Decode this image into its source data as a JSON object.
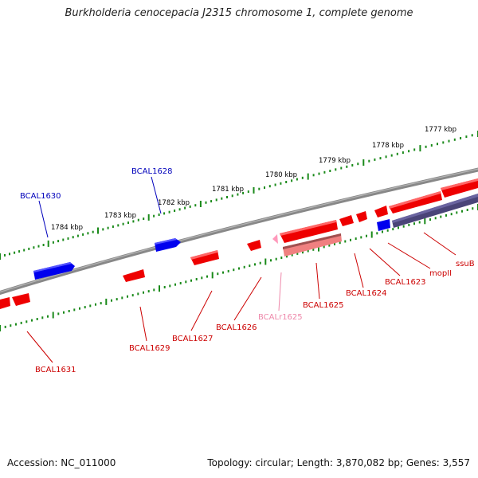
{
  "title": "Burkholderia cenocepacia J2315 chromosome 1, complete genome",
  "accession": "Accession: NC_011000",
  "topology": "Topology: circular; Length: 3,870,082 bp; Genes: 3,557",
  "colors": {
    "forward_gene": "#0000ee",
    "forward_gene_label": "#0000bb",
    "reverse_gene": "#ee0000",
    "reverse_gene_label": "#cc0000",
    "rna_gene": "#ff99bb",
    "rna_gene_label": "#ee88aa",
    "reverse_feature": "#4a4478",
    "tick": "#1a8a1a",
    "backbone": "#777777"
  },
  "scale_labels": [
    "1777 kbp",
    "1778 kbp",
    "1779 kbp",
    "1780 kbp",
    "1781 kbp",
    "1782 kbp",
    "1783 kbp",
    "1784 kbp"
  ],
  "forward_gene_labels": [
    "BCAL1628",
    "BCAL1630"
  ],
  "reverse_gene_labels": [
    "ssuB",
    "mopII",
    "BCAL1623",
    "BCAL1624",
    "BCAL1625",
    "BCAL1626",
    "BCAL1627",
    "BCAL1629",
    "BCAL1631"
  ],
  "rna_gene_labels": [
    "BCALr1625"
  ]
}
